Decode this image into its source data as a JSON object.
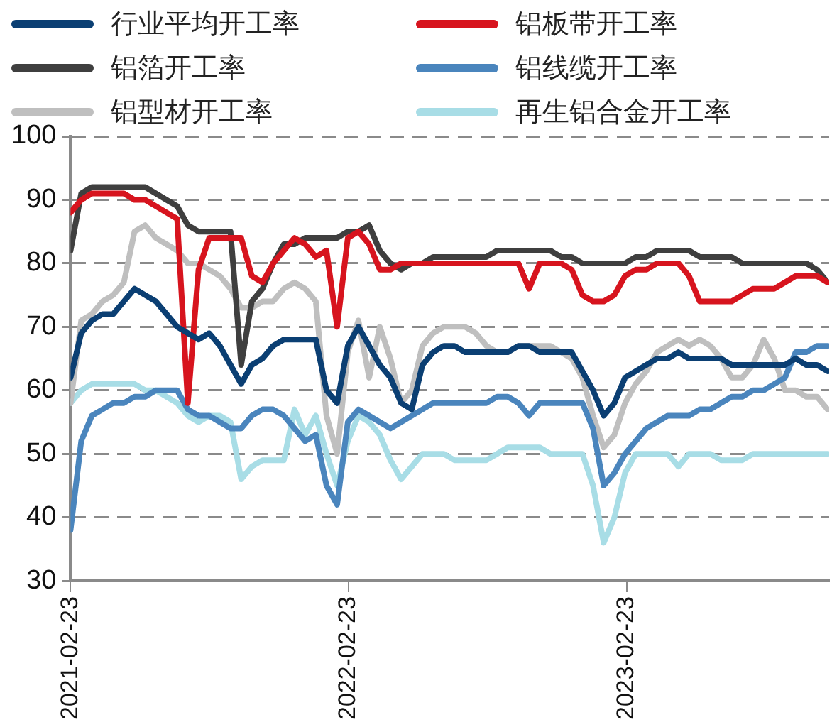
{
  "chart_data": {
    "type": "line",
    "legend": "top",
    "grid": "y",
    "marker": "none",
    "line_style": "solid",
    "ylim": [
      30,
      100
    ],
    "yticks": [
      30,
      40,
      50,
      60,
      70,
      80,
      90,
      100
    ],
    "xlim": [
      "2021-02-23",
      "2023-11-16"
    ],
    "xticks": [
      "2021-02-23",
      "2022-02-23",
      "2023-02-23"
    ],
    "x": [
      "2021-02-23",
      "2021-03-09",
      "2021-03-23",
      "2021-04-06",
      "2021-04-20",
      "2021-05-04",
      "2021-05-18",
      "2021-06-01",
      "2021-06-15",
      "2021-06-29",
      "2021-07-13",
      "2021-07-27",
      "2021-08-10",
      "2021-08-24",
      "2021-09-07",
      "2021-09-21",
      "2021-10-05",
      "2021-10-19",
      "2021-11-02",
      "2021-11-16",
      "2021-11-30",
      "2021-12-14",
      "2021-12-28",
      "2022-01-11",
      "2022-01-25",
      "2022-02-08",
      "2022-02-22",
      "2022-03-08",
      "2022-03-22",
      "2022-04-05",
      "2022-04-19",
      "2022-05-03",
      "2022-05-17",
      "2022-05-31",
      "2022-06-14",
      "2022-06-28",
      "2022-07-12",
      "2022-07-26",
      "2022-08-09",
      "2022-08-23",
      "2022-09-06",
      "2022-09-20",
      "2022-10-04",
      "2022-10-18",
      "2022-11-01",
      "2022-11-15",
      "2022-11-29",
      "2022-12-13",
      "2022-12-27",
      "2023-01-10",
      "2023-01-24",
      "2023-02-07",
      "2023-02-21",
      "2023-03-07",
      "2023-03-21",
      "2023-04-04",
      "2023-04-18",
      "2023-05-02",
      "2023-05-16",
      "2023-05-30",
      "2023-06-13",
      "2023-06-27",
      "2023-07-11",
      "2023-07-25",
      "2023-08-08",
      "2023-08-22",
      "2023-09-05",
      "2023-09-19",
      "2023-10-03",
      "2023-10-17",
      "2023-10-31",
      "2023-11-14"
    ],
    "series": [
      {
        "name": "行业平均开工率",
        "color": "#0b3f73",
        "values": [
          62,
          69,
          71,
          72,
          72,
          74,
          76,
          75,
          74,
          72,
          70,
          69,
          68,
          69,
          67,
          64,
          61,
          64,
          65,
          67,
          68,
          68,
          68,
          68,
          60,
          58,
          67,
          70,
          67,
          64,
          62,
          58,
          57,
          64,
          66,
          67,
          67,
          66,
          66,
          66,
          66,
          66,
          67,
          67,
          66,
          66,
          66,
          66,
          63,
          60,
          56,
          58,
          62,
          63,
          64,
          65,
          65,
          66,
          65,
          65,
          65,
          65,
          64,
          64,
          64,
          64,
          64,
          64,
          65,
          64,
          64,
          63
        ]
      },
      {
        "name": "铝板带开工率",
        "color": "#d7141e",
        "values": [
          88,
          90,
          91,
          91,
          91,
          91,
          90,
          90,
          89,
          88,
          87,
          58,
          79,
          84,
          84,
          84,
          84,
          78,
          77,
          80,
          82,
          84,
          83,
          81,
          82,
          70,
          84,
          85,
          83,
          79,
          79,
          80,
          80,
          80,
          80,
          80,
          80,
          80,
          80,
          80,
          80,
          80,
          80,
          76,
          80,
          80,
          80,
          79,
          75,
          74,
          74,
          75,
          78,
          79,
          79,
          80,
          80,
          80,
          78,
          74,
          74,
          74,
          74,
          75,
          76,
          76,
          76,
          77,
          78,
          78,
          78,
          77
        ]
      },
      {
        "name": "铝箔开工率",
        "color": "#3f3f3f",
        "values": [
          82,
          91,
          92,
          92,
          92,
          92,
          92,
          92,
          91,
          90,
          89,
          86,
          85,
          85,
          85,
          85,
          64,
          74,
          76,
          80,
          83,
          83,
          84,
          84,
          84,
          84,
          85,
          85,
          86,
          82,
          80,
          79,
          80,
          80,
          81,
          81,
          81,
          81,
          81,
          81,
          82,
          82,
          82,
          82,
          82,
          82,
          81,
          81,
          80,
          80,
          80,
          80,
          80,
          81,
          81,
          82,
          82,
          82,
          82,
          81,
          81,
          81,
          81,
          80,
          80,
          80,
          80,
          80,
          80,
          80,
          79,
          77
        ]
      },
      {
        "name": "铝线缆开工率",
        "color": "#4a85bd",
        "values": [
          38,
          52,
          56,
          57,
          58,
          58,
          59,
          59,
          60,
          60,
          60,
          57,
          56,
          56,
          55,
          54,
          54,
          56,
          57,
          57,
          56,
          54,
          52,
          53,
          45,
          42,
          55,
          57,
          56,
          55,
          54,
          55,
          56,
          57,
          58,
          58,
          58,
          58,
          58,
          58,
          59,
          59,
          58,
          56,
          58,
          58,
          58,
          58,
          58,
          54,
          45,
          47,
          50,
          52,
          54,
          55,
          56,
          56,
          56,
          57,
          57,
          58,
          59,
          59,
          60,
          60,
          61,
          62,
          66,
          66,
          67,
          67
        ]
      },
      {
        "name": "铝型材开工率",
        "color": "#bfbfbf",
        "values": [
          58,
          71,
          72,
          74,
          75,
          77,
          85,
          86,
          84,
          83,
          82,
          80,
          80,
          79,
          78,
          76,
          73,
          73,
          74,
          74,
          76,
          77,
          76,
          74,
          56,
          50,
          66,
          71,
          62,
          70,
          65,
          58,
          60,
          67,
          69,
          70,
          70,
          70,
          69,
          67,
          66,
          66,
          67,
          67,
          67,
          67,
          66,
          65,
          62,
          56,
          51,
          53,
          58,
          61,
          63,
          66,
          67,
          68,
          67,
          68,
          67,
          65,
          62,
          62,
          64,
          68,
          65,
          60,
          60,
          59,
          59,
          57
        ]
      },
      {
        "name": "再生铝合金开工率",
        "color": "#a8dde6",
        "values": [
          58,
          60,
          61,
          61,
          61,
          61,
          61,
          60,
          60,
          59,
          58,
          56,
          55,
          56,
          56,
          55,
          46,
          48,
          49,
          49,
          49,
          57,
          53,
          56,
          50,
          45,
          52,
          56,
          55,
          53,
          49,
          46,
          48,
          50,
          50,
          50,
          49,
          49,
          49,
          49,
          50,
          51,
          51,
          51,
          51,
          50,
          50,
          50,
          50,
          45,
          36,
          40,
          47,
          50,
          50,
          50,
          50,
          48,
          50,
          50,
          50,
          49,
          49,
          49,
          50,
          50,
          50,
          50,
          50,
          50,
          50,
          50
        ]
      }
    ]
  }
}
